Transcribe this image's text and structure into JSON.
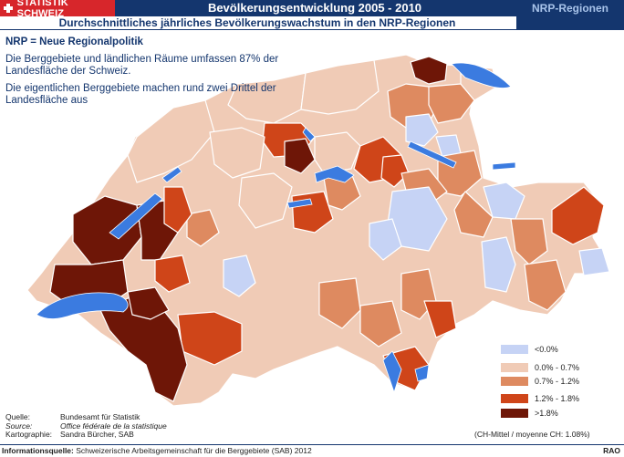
{
  "header": {
    "logo_text": "STATISTIK SCHWEIZ",
    "title": "Bevölkerungsentwicklung 2005 - 2010",
    "tag": "NRP-Regionen",
    "subtitle": "Durchschnittliches jährliches Bevölkerungswachstum in den NRP-Regionen"
  },
  "info": {
    "heading": "NRP = Neue Regionalpolitik",
    "para1": "Die Berggebiete und ländlichen Räume umfassen 87% der Landesfläche der Schweiz.",
    "para2": "Die eigentlichen Berggebiete machen rund zwei Drittel der Landesfläche aus"
  },
  "legend": [
    {
      "label": "<0.0%",
      "color": "#c6d3f5"
    },
    {
      "label": "0.0% - 0.7%",
      "color": "#f0cbb6"
    },
    {
      "label": "0.7% - 1.2%",
      "color": "#de8a60"
    },
    {
      "label": "1.2% - 1.8%",
      "color": "#cf4519"
    },
    {
      "label": ">1.8%",
      "color": "#6e1607"
    }
  ],
  "average": "(CH-Mittel / moyenne CH: 1.08%)",
  "source": {
    "quelle_label": "Quelle:",
    "quelle": "Bundesamt für Statistik",
    "source_label": "Source:",
    "source": "Office fédérale de la statistique",
    "karto_label": "Kartographie:",
    "karto": "Sandra Bürcher, SAB"
  },
  "footer": {
    "label": "Informationsquelle:",
    "text": "Schweizerische Arbeitsgemeinschaft für die Berggebiete (SAB) 2012",
    "rao": "RAO"
  },
  "colors": {
    "header_blue": "#14366e",
    "swiss_red": "#d7262b",
    "lake_blue": "#3b7be0"
  }
}
